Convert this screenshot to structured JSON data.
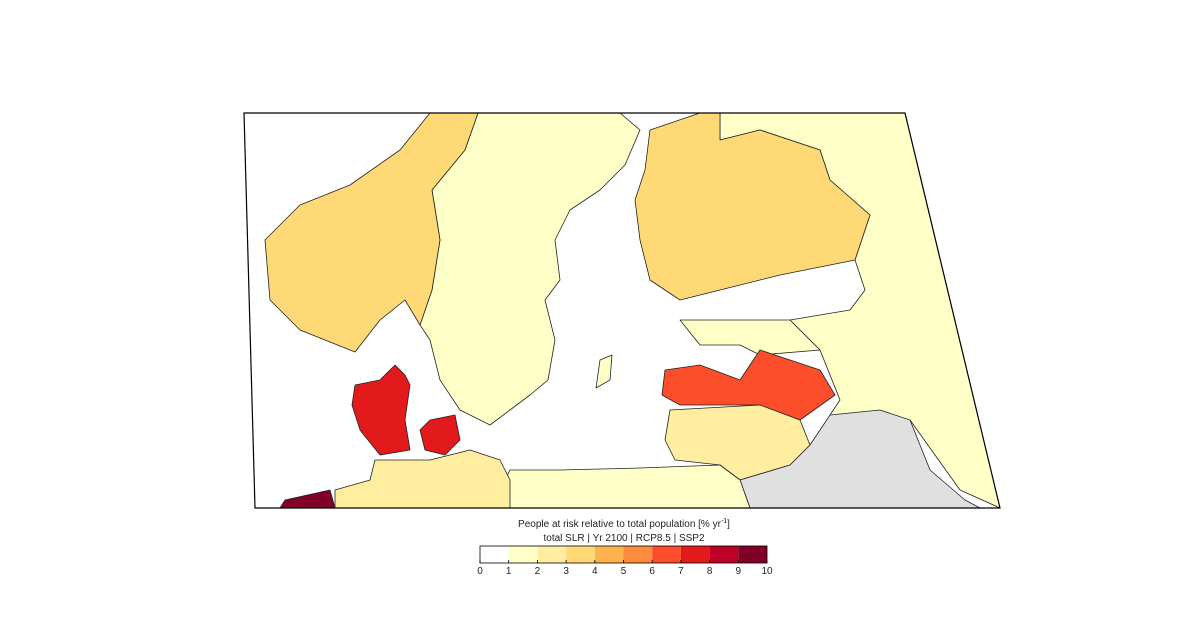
{
  "colorbar": {
    "title_parts": [
      "People at risk relative to total population [% yr",
      "-1",
      "]"
    ],
    "subtitle": "total SLR | Yr 2100 | RCP8.5 | SSP2",
    "ticks": [
      0,
      1,
      2,
      3,
      4,
      5,
      6,
      7,
      8,
      9,
      10
    ],
    "colors": [
      "#ffffff",
      "#ffffc8",
      "#ffeda0",
      "#fed976",
      "#feb24c",
      "#fd8d3c",
      "#fc4e2a",
      "#e31a1c",
      "#bd0026",
      "#800026"
    ]
  }
}
